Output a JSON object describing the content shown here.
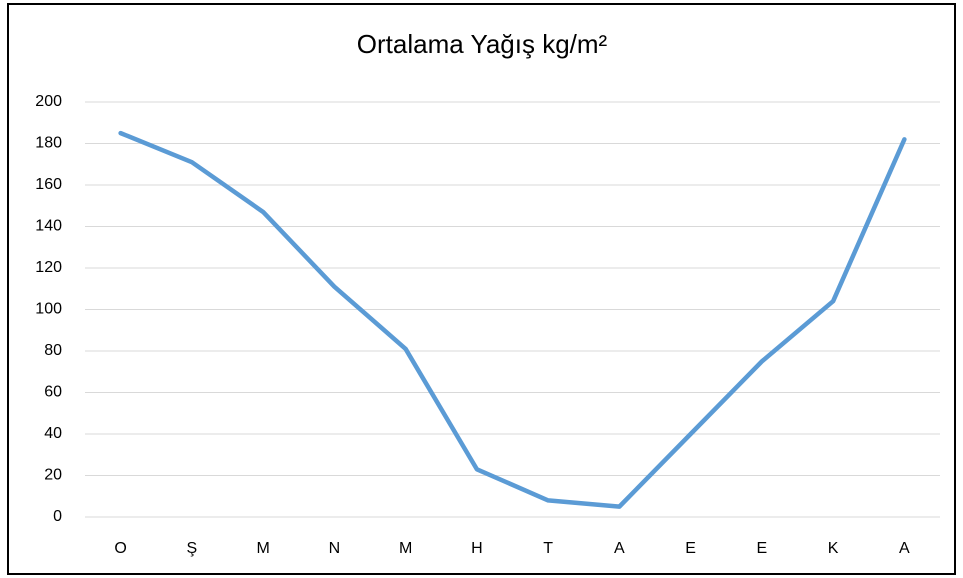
{
  "chart_data": {
    "type": "line",
    "title": "Ortalama Yağış kg/m²",
    "categories": [
      "O",
      "Ş",
      "M",
      "N",
      "M",
      "H",
      "T",
      "A",
      "E",
      "E",
      "K",
      "A"
    ],
    "values": [
      185,
      171,
      147,
      111,
      81,
      23,
      8,
      5,
      40,
      75,
      104,
      182
    ],
    "color": "#5b9bd5",
    "ylim": [
      0,
      200
    ],
    "yticks": [
      0,
      20,
      40,
      60,
      80,
      100,
      120,
      140,
      160,
      180,
      200
    ],
    "grid": true
  }
}
